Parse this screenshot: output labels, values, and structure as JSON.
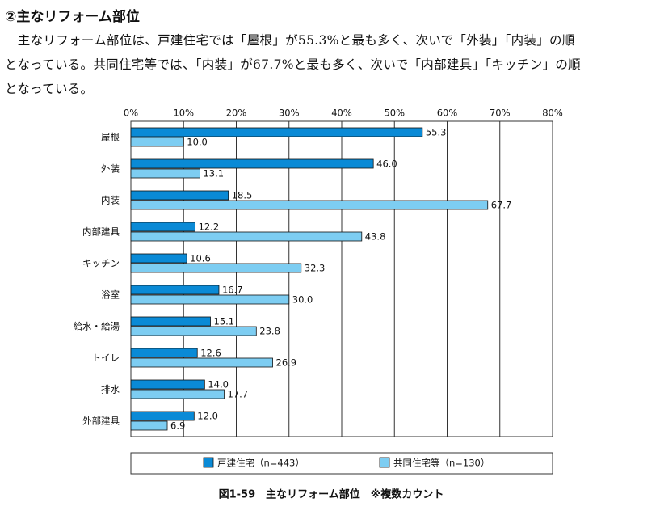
{
  "header": {
    "title": "②主なリフォーム部位"
  },
  "paragraph": {
    "lines": [
      "　主なリフォーム部位は、戸建住宅では「屋根」が55.3%と最も多く、次いで「外装」「内装」の順",
      "となっている。共同住宅等では、「内装」が67.7%と最も多く、次いで「内部建具」「キッチン」の順",
      "となっている。"
    ]
  },
  "chart_data": {
    "type": "bar",
    "orientation": "horizontal",
    "categories": [
      "屋根",
      "外装",
      "内装",
      "内部建具",
      "キッチン",
      "浴室",
      "給水・給湯",
      "トイレ",
      "排水",
      "外部建具"
    ],
    "series": [
      {
        "name": "戸建住宅（n=443）",
        "color": "#0a8ad6",
        "values": [
          55.3,
          46.0,
          18.5,
          12.2,
          10.6,
          16.7,
          15.1,
          12.6,
          14.0,
          12.0
        ],
        "value_labels": [
          "55.3",
          "46.0",
          "18.5",
          "12.2",
          "10.6",
          "16.7",
          "15.1",
          "12.6",
          "14.0",
          "12.0"
        ]
      },
      {
        "name": "共同住宅等（n=130）",
        "color": "#7dcdf2",
        "values": [
          10.0,
          13.1,
          67.7,
          43.8,
          32.3,
          30.0,
          23.8,
          26.9,
          17.7,
          6.9
        ],
        "value_labels": [
          "10.0",
          "13.1",
          "67.7",
          "43.8",
          "32.3",
          "30.0",
          "23.8",
          "26.9",
          "17.7",
          "6.9"
        ]
      }
    ],
    "xlim": [
      0,
      80
    ],
    "xticks": [
      {
        "value": 0,
        "label": "0%"
      },
      {
        "value": 10,
        "label": "10%"
      },
      {
        "value": 20,
        "label": "20%"
      },
      {
        "value": 30,
        "label": "30%"
      },
      {
        "value": 40,
        "label": "40%"
      },
      {
        "value": 50,
        "label": "50%"
      },
      {
        "value": 60,
        "label": "60%"
      },
      {
        "value": 70,
        "label": "70%"
      },
      {
        "value": 80,
        "label": "80%"
      }
    ],
    "grid": true,
    "caption": "図1-59　主なリフォーム部位　※複数カウント"
  }
}
